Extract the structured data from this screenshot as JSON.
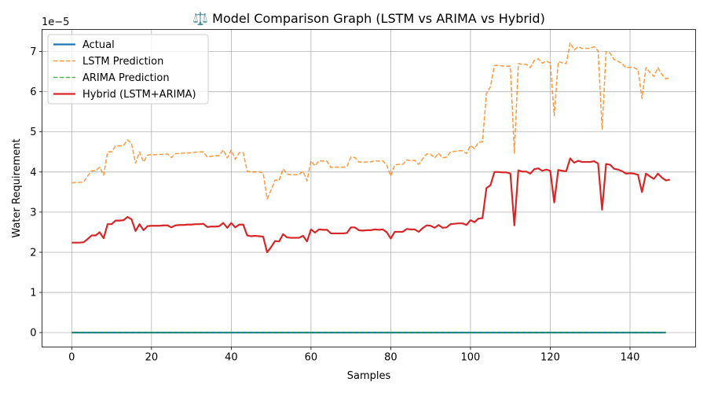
{
  "chart_data": {
    "type": "line",
    "title": "⚖️ Model Comparison Graph (LSTM vs ARIMA vs Hybrid)",
    "xlabel": "Samples",
    "ylabel": "Water Requirement",
    "scale_label": "1e−5",
    "xlim": [
      -7.45,
      156.45
    ],
    "ylim": [
      -0.36,
      7.55
    ],
    "x_ticks": [
      0,
      20,
      40,
      60,
      80,
      100,
      120,
      140
    ],
    "y_ticks": [
      0,
      1,
      2,
      3,
      4,
      5,
      6,
      7
    ],
    "grid": true,
    "legend_position": "top-left",
    "series": [
      {
        "name": "Actual",
        "color": "#1f77b4",
        "dash": "solid",
        "values": [
          0.0,
          0.0,
          0.0,
          0.0,
          0.0,
          0.0,
          0.0,
          0.0,
          0.0,
          0.0,
          0.0,
          0.0,
          0.0,
          0.0,
          0.0,
          0.0,
          0.0,
          0.0,
          0.0,
          0.0,
          0.0,
          0.0,
          0.0,
          0.0,
          0.0,
          0.0,
          0.0,
          0.0,
          0.0,
          0.0,
          0.0,
          0.0,
          0.0,
          0.0,
          0.0,
          0.0,
          0.0,
          0.0,
          0.0,
          0.0,
          0.0,
          0.0,
          0.0,
          0.0,
          0.0,
          0.0,
          0.0,
          0.0,
          0.0,
          0.0,
          0.0,
          0.0,
          0.0,
          0.0,
          0.0,
          0.0,
          0.0,
          0.0,
          0.0,
          0.0,
          0.0,
          0.0,
          0.0,
          0.0,
          0.0,
          0.0,
          0.0,
          0.0,
          0.0,
          0.0,
          0.0,
          0.0,
          0.0,
          0.0,
          0.0,
          0.0,
          0.0,
          0.0,
          0.0,
          0.0,
          0.0,
          0.0,
          0.0,
          0.0,
          0.0,
          0.0,
          0.0,
          0.0,
          0.0,
          0.0,
          0.0,
          0.0,
          0.0,
          0.0,
          0.0,
          0.0,
          0.0,
          0.0,
          0.0,
          0.0,
          0.0,
          0.0,
          0.0,
          0.0,
          0.0,
          0.0,
          0.0,
          0.0,
          0.0,
          0.0,
          0.0,
          0.0,
          0.0,
          0.0,
          0.0,
          0.0,
          0.0,
          0.0,
          0.0,
          0.0,
          0.0,
          0.0,
          0.0,
          0.0,
          0.0,
          0.0,
          0.0,
          0.0,
          0.0,
          0.0,
          0.0,
          0.0,
          0.0,
          0.0,
          0.0,
          0.0,
          0.0,
          0.0,
          0.0,
          0.0,
          0.0,
          0.0,
          0.0,
          0.0,
          0.0,
          0.0,
          0.0,
          0.0,
          0.0,
          0.0
        ]
      },
      {
        "name": "LSTM Prediction",
        "color": "#ff7f0e",
        "dash": "dashed",
        "values": [
          3.73,
          3.74,
          3.74,
          3.75,
          3.9,
          4.03,
          4.03,
          4.12,
          3.92,
          4.5,
          4.5,
          4.65,
          4.65,
          4.66,
          4.8,
          4.7,
          4.22,
          4.5,
          4.25,
          4.42,
          4.43,
          4.43,
          4.44,
          4.44,
          4.45,
          4.36,
          4.46,
          4.46,
          4.47,
          4.47,
          4.48,
          4.49,
          4.5,
          4.5,
          4.37,
          4.39,
          4.4,
          4.41,
          4.55,
          4.35,
          4.55,
          4.32,
          4.48,
          4.48,
          4.02,
          4.0,
          4.0,
          4.0,
          3.98,
          3.33,
          3.55,
          3.8,
          3.79,
          4.08,
          3.95,
          3.93,
          3.93,
          3.94,
          4.02,
          3.78,
          4.28,
          4.15,
          4.28,
          4.27,
          4.27,
          4.11,
          4.12,
          4.12,
          4.12,
          4.13,
          4.37,
          4.36,
          4.25,
          4.24,
          4.25,
          4.25,
          4.28,
          4.27,
          4.28,
          4.17,
          3.9,
          4.18,
          4.19,
          4.19,
          4.3,
          4.28,
          4.29,
          4.19,
          4.33,
          4.45,
          4.44,
          4.35,
          4.47,
          4.35,
          4.37,
          4.5,
          4.51,
          4.53,
          4.53,
          4.46,
          4.66,
          4.58,
          4.74,
          4.75,
          5.96,
          6.12,
          6.65,
          6.66,
          6.64,
          6.64,
          6.63,
          4.47,
          6.7,
          6.68,
          6.68,
          6.6,
          6.78,
          6.82,
          6.71,
          6.76,
          6.72,
          5.4,
          6.75,
          6.72,
          6.7,
          7.22,
          7.04,
          7.12,
          7.08,
          7.08,
          7.08,
          7.12,
          7.02,
          5.07,
          7.0,
          6.96,
          6.8,
          6.76,
          6.7,
          6.6,
          6.61,
          6.6,
          6.55,
          5.83,
          6.6,
          6.48,
          6.38,
          6.6,
          6.43,
          6.32,
          6.35
        ]
      },
      {
        "name": "ARIMA Prediction",
        "color": "#2ca02c",
        "dash": "dashed",
        "values": [
          0.0,
          0.0,
          0.0,
          0.0,
          0.0,
          0.0,
          0.0,
          0.0,
          0.0,
          0.0,
          0.0,
          0.0,
          0.0,
          0.0,
          0.0,
          0.0,
          0.0,
          0.0,
          0.0,
          0.0,
          0.0,
          0.0,
          0.0,
          0.0,
          0.0,
          0.0,
          0.0,
          0.0,
          0.0,
          0.0,
          0.0,
          0.0,
          0.0,
          0.0,
          0.0,
          0.0,
          0.0,
          0.0,
          0.0,
          0.0,
          0.0,
          0.0,
          0.0,
          0.0,
          0.0,
          0.0,
          0.0,
          0.0,
          0.0,
          0.0,
          0.0,
          0.0,
          0.0,
          0.0,
          0.0,
          0.0,
          0.0,
          0.0,
          0.0,
          0.0,
          0.0,
          0.0,
          0.0,
          0.0,
          0.0,
          0.0,
          0.0,
          0.0,
          0.0,
          0.0,
          0.0,
          0.0,
          0.0,
          0.0,
          0.0,
          0.0,
          0.0,
          0.0,
          0.0,
          0.0,
          0.0,
          0.0,
          0.0,
          0.0,
          0.0,
          0.0,
          0.0,
          0.0,
          0.0,
          0.0,
          0.0,
          0.0,
          0.0,
          0.0,
          0.0,
          0.0,
          0.0,
          0.0,
          0.0,
          0.0,
          0.0,
          0.0,
          0.0,
          0.0,
          0.0,
          0.0,
          0.0,
          0.0,
          0.0,
          0.0,
          0.0,
          0.0,
          0.0,
          0.0,
          0.0,
          0.0,
          0.0,
          0.0,
          0.0,
          0.0,
          0.0,
          0.0,
          0.0,
          0.0,
          0.0,
          0.0,
          0.0,
          0.0,
          0.0,
          0.0,
          0.0,
          0.0,
          0.0,
          0.0,
          0.0,
          0.0,
          0.0,
          0.0,
          0.0,
          0.0,
          0.0,
          0.0,
          0.0,
          0.0,
          0.0,
          0.0,
          0.0,
          0.0,
          0.0,
          0.0
        ]
      },
      {
        "name": "Hybrid (LSTM+ARIMA)",
        "color": "#d62728",
        "dash": "solid",
        "values": [
          2.24,
          2.24,
          2.24,
          2.25,
          2.33,
          2.42,
          2.42,
          2.5,
          2.35,
          2.7,
          2.7,
          2.79,
          2.79,
          2.8,
          2.88,
          2.82,
          2.53,
          2.7,
          2.55,
          2.65,
          2.66,
          2.66,
          2.66,
          2.67,
          2.67,
          2.62,
          2.67,
          2.68,
          2.68,
          2.69,
          2.69,
          2.7,
          2.7,
          2.71,
          2.63,
          2.64,
          2.64,
          2.65,
          2.73,
          2.61,
          2.73,
          2.62,
          2.69,
          2.69,
          2.42,
          2.4,
          2.41,
          2.4,
          2.39,
          2.0,
          2.13,
          2.28,
          2.27,
          2.45,
          2.37,
          2.36,
          2.36,
          2.36,
          2.41,
          2.27,
          2.57,
          2.49,
          2.57,
          2.56,
          2.56,
          2.47,
          2.47,
          2.47,
          2.47,
          2.48,
          2.62,
          2.62,
          2.55,
          2.54,
          2.55,
          2.55,
          2.57,
          2.56,
          2.57,
          2.5,
          2.34,
          2.51,
          2.51,
          2.51,
          2.58,
          2.57,
          2.57,
          2.51,
          2.6,
          2.67,
          2.66,
          2.61,
          2.68,
          2.61,
          2.62,
          2.7,
          2.71,
          2.72,
          2.72,
          2.68,
          2.8,
          2.75,
          2.84,
          2.85,
          3.6,
          3.67,
          4.0,
          4.0,
          3.99,
          3.99,
          3.96,
          2.67,
          4.04,
          4.01,
          4.01,
          3.96,
          4.07,
          4.09,
          4.03,
          4.06,
          4.03,
          3.24,
          4.05,
          4.03,
          4.02,
          4.34,
          4.23,
          4.28,
          4.25,
          4.25,
          4.25,
          4.27,
          4.21,
          3.06,
          4.2,
          4.18,
          4.08,
          4.06,
          4.02,
          3.96,
          3.97,
          3.96,
          3.93,
          3.5,
          3.96,
          3.89,
          3.83,
          3.96,
          3.86,
          3.79,
          3.81
        ]
      }
    ]
  }
}
